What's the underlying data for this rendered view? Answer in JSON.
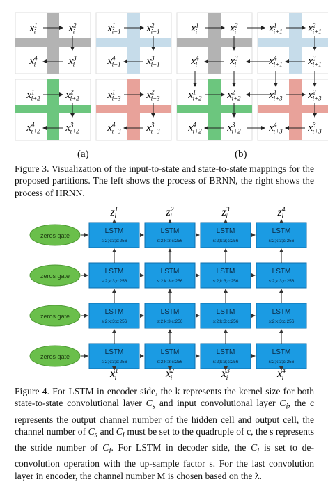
{
  "figure3": {
    "panels": [
      {
        "id": "a",
        "label": "(a)",
        "quads": [
          {
            "color": "#b3b3b3",
            "cells": [
              "x1_i",
              "x2_i",
              "x4_i",
              "x3_i"
            ]
          },
          {
            "color": "#c6dcea",
            "cells": [
              "x1_i+1",
              "x2_i+1",
              "x4_i+1",
              "x3_i+1"
            ]
          },
          {
            "color": "#6cc67e",
            "cells": [
              "x1_i+2",
              "x2_i+2",
              "x4_i+2",
              "x3_i+2"
            ]
          },
          {
            "color": "#e8a29a",
            "cells": [
              "x1_i+3",
              "x2_i+3",
              "x4_i+3",
              "x3_i+3"
            ]
          }
        ]
      },
      {
        "id": "b",
        "label": "(b)",
        "quads": [
          {
            "color": "#b3b3b3",
            "cells": [
              "x1_i",
              "x2_i",
              "x4_i",
              "x3_i"
            ]
          },
          {
            "color": "#c6dcea",
            "cells": [
              "x1_i+1",
              "x2_i+1",
              "x4_i+1",
              "x3_i+1"
            ]
          },
          {
            "color": "#6cc67e",
            "cells": [
              "x1_i+2",
              "x2_i+2",
              "x4_i+2",
              "x3_i+2"
            ]
          },
          {
            "color": "#e8a29a",
            "cells": [
              "x1_i+3",
              "x2_i+3",
              "x4_i+3",
              "x3_i+3"
            ]
          }
        ]
      }
    ],
    "caption": "Figure 3. Visualization of the input-to-state and state-to-state mappings for the proposed partitions.  The left shows the process of BRNN, the right shows the process of HRNN."
  },
  "figure4": {
    "outputs": [
      "z1_i",
      "z2_i",
      "z3_i",
      "z4_i"
    ],
    "inputs": [
      "x1_i",
      "x2_i",
      "x3_i",
      "x4_i"
    ],
    "rows": 4,
    "gate_label": "zeros gate",
    "cell_label": "LSTM",
    "cell_params": "s:2;k:3;c:256",
    "cell_color": "#1b9be3",
    "gate_color": "#6abf4b",
    "caption_html": "Figure 4. For LSTM in encoder side, the k represents the kernel size for both state-to-state convolutional layer <i>C<sub>s</sub></i> and input convolutional layer <i>C<sub>i</sub></i>, the c represents the output channel number of the hidden cell and output cell, the channel number of <i>C<sub>s</sub></i> and <i>C<sub>i</sub></i> must be set to the quadruple of c, the s represents the stride number of <i>C<sub>i</sub></i>. For LSTM in decoder side, the <i>C<sub>i</sub></i> is set to de-convolution operation with the up-sample factor s.  For the last convolution layer in encoder, the channel number M is chosen based on the λ."
  }
}
